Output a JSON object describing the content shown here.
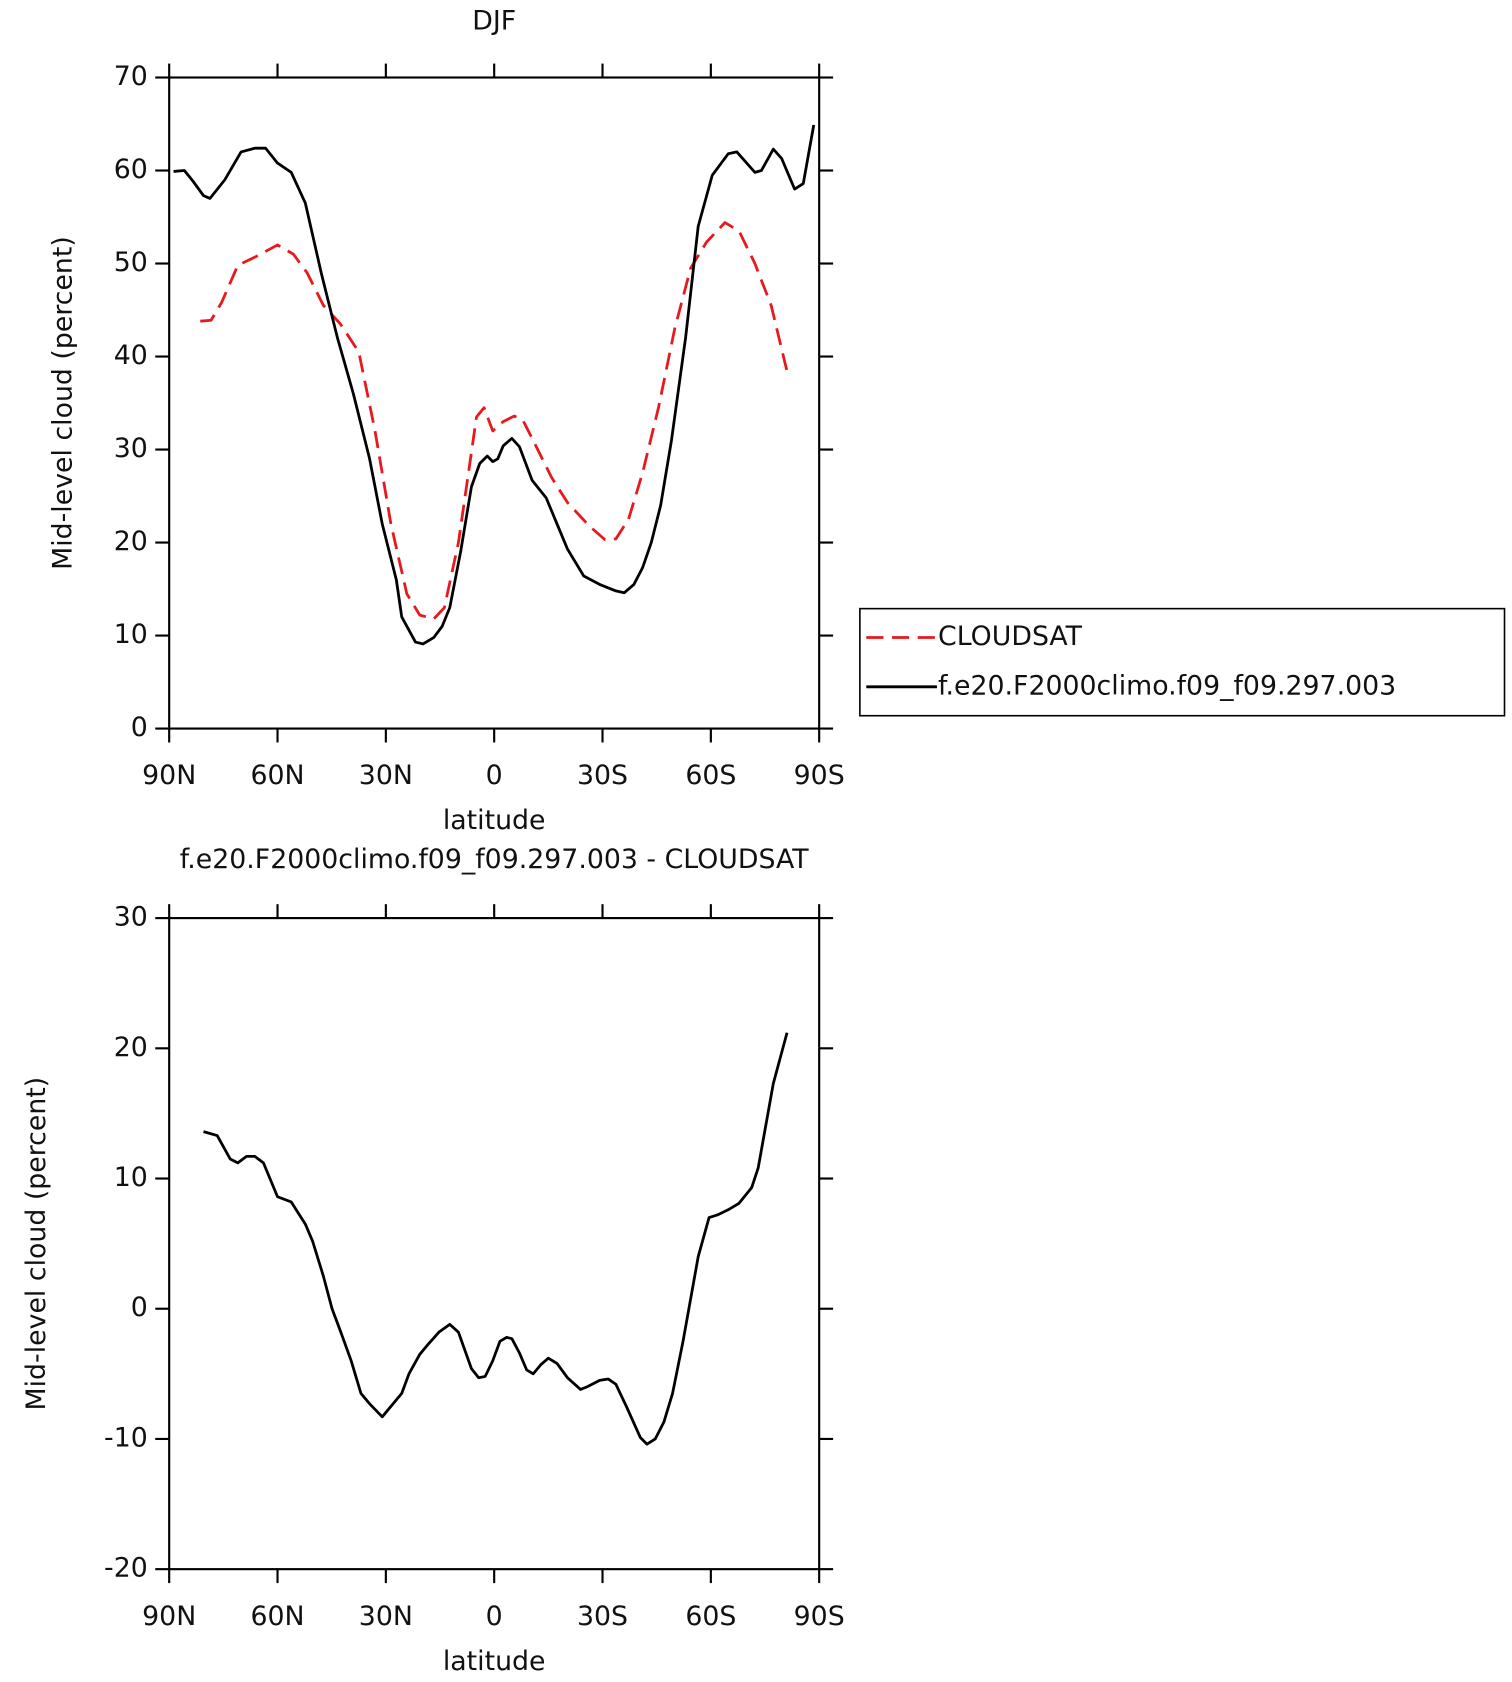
{
  "chart_data": [
    {
      "type": "line",
      "title": "DJF",
      "xlabel": "latitude",
      "ylabel": "Mid-level cloud (percent)",
      "xlim": [
        90,
        -90
      ],
      "xticks": [
        {
          "value": 90,
          "label": "90N"
        },
        {
          "value": 60,
          "label": "60N"
        },
        {
          "value": 30,
          "label": "30N"
        },
        0,
        {
          "value": -30,
          "label": "30S"
        },
        {
          "value": -60,
          "label": "60S"
        },
        {
          "value": -90,
          "label": "90S"
        }
      ],
      "ylim": [
        0,
        70
      ],
      "yticks": [
        0,
        10,
        20,
        30,
        40,
        50,
        60,
        70
      ],
      "legend": "outside-right",
      "series": [
        {
          "name": "CLOUDSAT",
          "color": "#e8191c",
          "dashed": true,
          "x": [
            81.4,
            78.4,
            75.5,
            71,
            65.7,
            60,
            55.6,
            51.8,
            47.3,
            42.6,
            37.5,
            33,
            28.6,
            24.2,
            20.6,
            16.7,
            13.8,
            9.9,
            4.9,
            2.8,
            0.4,
            -2.5,
            -5.5,
            -7.9,
            -11.4,
            -15.9,
            -20.3,
            -26.3,
            -30.7,
            -33.7,
            -37.2,
            -41.1,
            -45.5,
            -50,
            -54.4,
            -58.8,
            -63.9,
            -67.8,
            -72.2,
            -76.7,
            -81.1
          ],
          "values": [
            43.8,
            43.9,
            45.8,
            49.8,
            50.8,
            52,
            51,
            49,
            45.5,
            43.5,
            40.5,
            32,
            22,
            14.5,
            12.2,
            11.8,
            13,
            20,
            33.5,
            34.5,
            32,
            33,
            33.6,
            33.2,
            30.5,
            27,
            24.3,
            21.8,
            20.3,
            20.4,
            22.5,
            27.5,
            34.5,
            43,
            49.5,
            52.3,
            54.4,
            53.5,
            50,
            45.5,
            38.4
          ]
        },
        {
          "name": "f.e20.F2000climo.f09_f09.297.003",
          "color": "#000000",
          "dashed": false,
          "x": [
            88.8,
            85.8,
            83.5,
            80.5,
            78.7,
            74.6,
            70.1,
            66.3,
            63.3,
            60,
            56.2,
            52.3,
            47.9,
            43.4,
            39,
            34.5,
            31,
            27.1,
            25.6,
            21.8,
            19.7,
            16.7,
            14.4,
            12.3,
            9.3,
            6.3,
            4,
            1.9,
            0.4,
            -1,
            -2.5,
            -4.9,
            -7,
            -10.5,
            -14.4,
            -17.4,
            -20.3,
            -24.8,
            -29.2,
            -33.7,
            -36,
            -38.7,
            -41.1,
            -43.5,
            -46.1,
            -49.1,
            -53,
            -56.5,
            -60.4,
            -64.8,
            -67.2,
            -72.2,
            -74,
            -77.3,
            -79.6,
            -83.2,
            -85.6,
            -88.5
          ],
          "values": [
            59.9,
            60,
            58.9,
            57.3,
            57,
            59,
            62,
            62.4,
            62.4,
            60.8,
            59.8,
            56.5,
            49,
            42,
            36,
            29,
            22,
            16,
            12,
            9.3,
            9.1,
            9.8,
            11,
            13,
            19,
            26,
            28.5,
            29.3,
            28.7,
            29,
            30.4,
            31.2,
            30.3,
            26.7,
            24.8,
            22,
            19.3,
            16.4,
            15.5,
            14.8,
            14.6,
            15.5,
            17.3,
            20,
            24,
            31,
            42,
            54,
            59.5,
            61.8,
            62,
            59.8,
            60,
            62.3,
            61.3,
            58,
            58.6,
            64.9
          ]
        }
      ]
    },
    {
      "type": "line",
      "title": "f.e20.F2000climo.f09_f09.297.003 - CLOUDSAT",
      "xlabel": "latitude",
      "ylabel": "Mid-level cloud (percent)",
      "xlim": [
        90,
        -90
      ],
      "xticks": [
        {
          "value": 90,
          "label": "90N"
        },
        {
          "value": 60,
          "label": "60N"
        },
        {
          "value": 30,
          "label": "30N"
        },
        0,
        {
          "value": -30,
          "label": "30S"
        },
        {
          "value": -60,
          "label": "60S"
        },
        {
          "value": -90,
          "label": "90S"
        }
      ],
      "ylim": [
        -20,
        30
      ],
      "yticks": [
        -20,
        -10,
        0,
        10,
        20,
        30
      ],
      "series": [
        {
          "color": "#000000",
          "dashed": false,
          "x": [
            80.5,
            76.7,
            73.1,
            71,
            68.6,
            66.3,
            63.9,
            60,
            56.2,
            52.3,
            50.3,
            47.3,
            44.9,
            42.6,
            39.6,
            36.9,
            34.5,
            31,
            25.6,
            23.6,
            20.6,
            18.2,
            15.3,
            12.3,
            9.9,
            6.3,
            4.3,
            2.5,
            0.4,
            -1.6,
            -3.4,
            -4.9,
            -7,
            -9,
            -10.8,
            -12.9,
            -15,
            -17.4,
            -20.3,
            -23.9,
            -25.7,
            -29.2,
            -31.6,
            -33.7,
            -36.6,
            -40.5,
            -42.3,
            -44.6,
            -47,
            -49.4,
            -52.3,
            -56.5,
            -59.5,
            -61.8,
            -64.8,
            -67.8,
            -71.3,
            -73.1,
            -77.3,
            -81.1
          ],
          "values": [
            13.6,
            13.3,
            11.5,
            11.2,
            11.7,
            11.7,
            11.2,
            8.6,
            8.2,
            6.5,
            5.2,
            2.5,
            0,
            -1.7,
            -4,
            -6.5,
            -7.3,
            -8.3,
            -6.5,
            -5,
            -3.5,
            -2.7,
            -1.8,
            -1.2,
            -1.8,
            -4.6,
            -5.3,
            -5.2,
            -4,
            -2.5,
            -2.2,
            -2.3,
            -3.4,
            -4.7,
            -5,
            -4.3,
            -3.8,
            -4.2,
            -5.3,
            -6.2,
            -6,
            -5.5,
            -5.4,
            -5.8,
            -7.5,
            -9.9,
            -10.4,
            -10,
            -8.7,
            -6.5,
            -2.5,
            4,
            7,
            7.2,
            7.6,
            8.1,
            9.3,
            10.8,
            17.3,
            21.2
          ]
        }
      ]
    }
  ]
}
